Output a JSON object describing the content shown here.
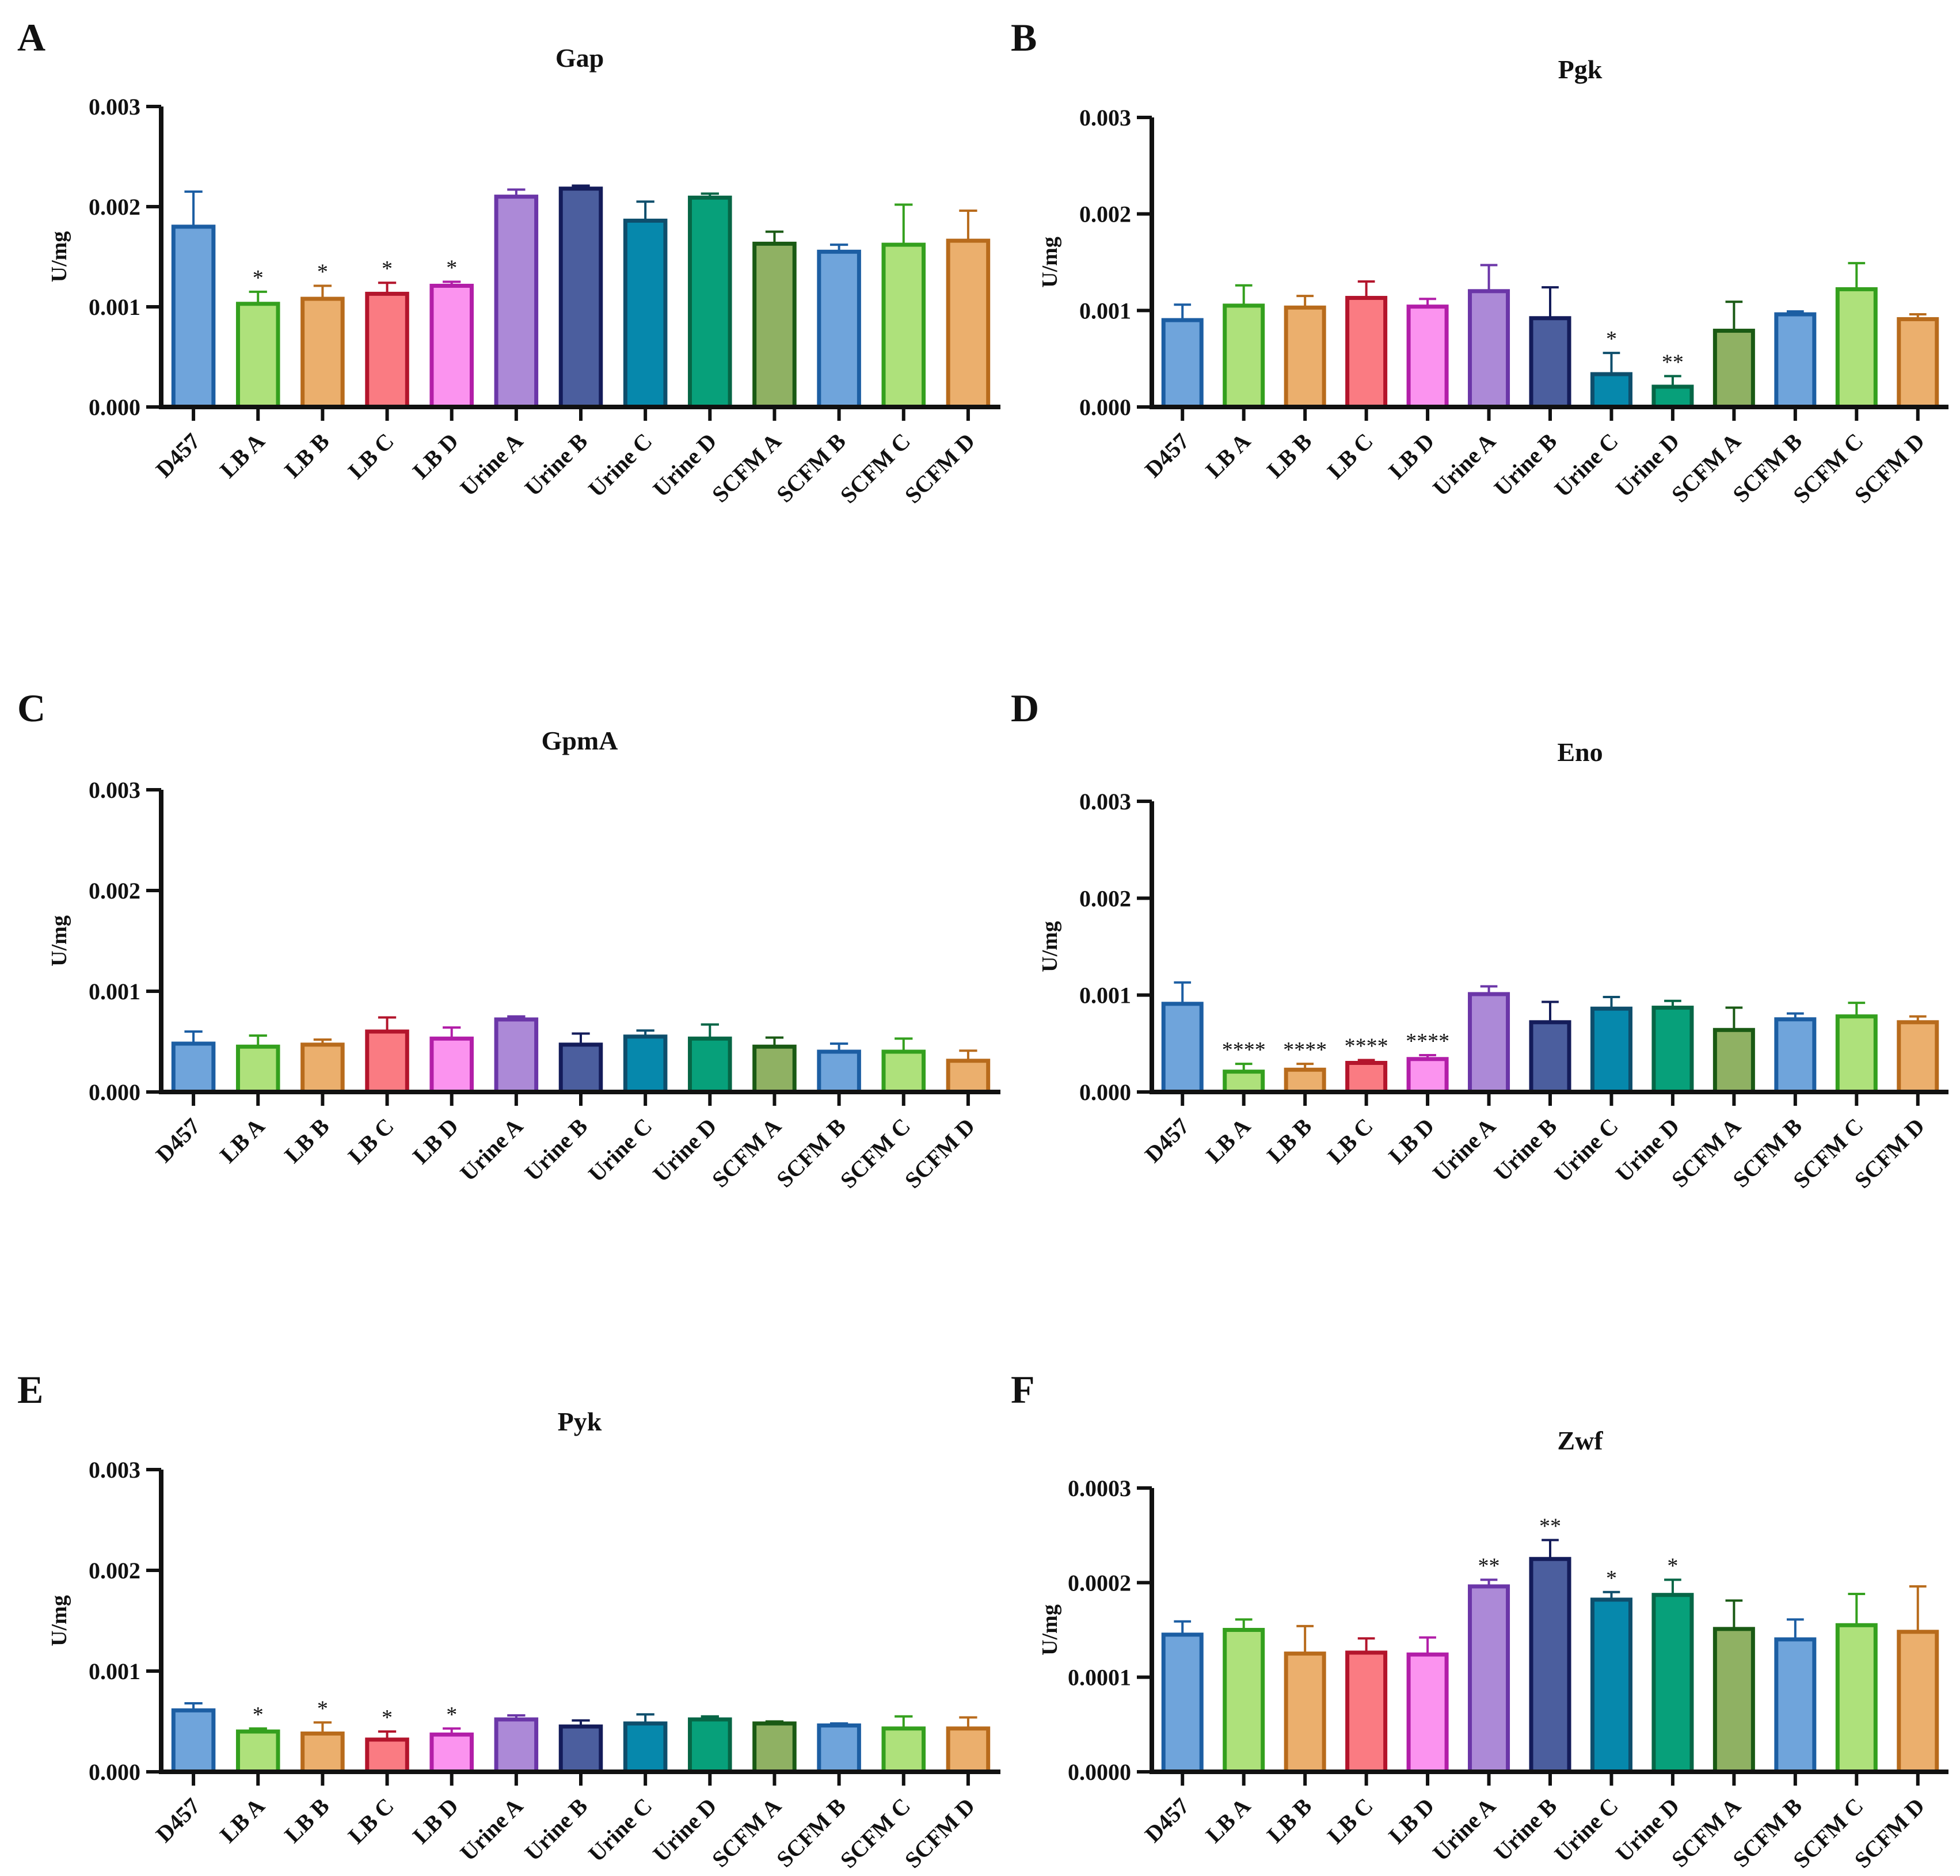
{
  "figure": {
    "categories": [
      "D457",
      "LB A",
      "LB B",
      "LB C",
      "LB D",
      "Urine A",
      "Urine B",
      "Urine C",
      "Urine D",
      "SCFM A",
      "SCFM B",
      "SCFM C",
      "SCFM D"
    ],
    "bar_fills": [
      "#6fa4db",
      "#aee17b",
      "#ebaf6d",
      "#fa7b82",
      "#fb93ef",
      "#ac89d7",
      "#4b5e9e",
      "#0688ac",
      "#07a07a",
      "#8fb163",
      "#6fa4db",
      "#aee17b",
      "#ebaf6d"
    ],
    "bar_outlines": [
      "#1c5ea3",
      "#34a01e",
      "#b86b1c",
      "#b3152c",
      "#b21ea8",
      "#6b36a8",
      "#141c5a",
      "#0e4e6c",
      "#066646",
      "#1a5a14",
      "#1c5ea3",
      "#34a01e",
      "#b86b1c"
    ]
  },
  "chart_data": [
    {
      "panel": "A",
      "type": "bar",
      "title": "Gap",
      "ylabel": "U/mg",
      "xlabel": "",
      "ylim": [
        0,
        0.003
      ],
      "yticks": [
        "0.000",
        "0.001",
        "0.002",
        "0.003"
      ],
      "values": [
        0.0018,
        0.00103,
        0.00108,
        0.00113,
        0.00121,
        0.0021,
        0.00218,
        0.00186,
        0.00209,
        0.00163,
        0.00155,
        0.00162,
        0.00166
      ],
      "errors": [
        0.00035,
        0.00012,
        0.00013,
        0.00011,
        4e-05,
        7e-05,
        3e-05,
        0.00019,
        4e-05,
        0.00012,
        7e-05,
        0.0004,
        0.0003
      ],
      "annotations": [
        "",
        "*",
        "*",
        "*",
        "*",
        "",
        "",
        "",
        "",
        "",
        "",
        "",
        ""
      ]
    },
    {
      "panel": "B",
      "type": "bar",
      "title": "Pgk",
      "ylabel": "U/mg",
      "xlabel": "",
      "ylim": [
        0,
        0.003
      ],
      "yticks": [
        "0.000",
        "0.001",
        "0.002",
        "0.003"
      ],
      "values": [
        0.0009,
        0.00105,
        0.00103,
        0.00113,
        0.00104,
        0.0012,
        0.00092,
        0.00034,
        0.00021,
        0.00079,
        0.00096,
        0.00122,
        0.00091
      ],
      "errors": [
        0.00016,
        0.00021,
        0.00012,
        0.00017,
        8e-05,
        0.00027,
        0.00032,
        0.00022,
        0.00011,
        0.0003,
        3e-05,
        0.00027,
        5e-05
      ],
      "annotations": [
        "",
        "",
        "",
        "",
        "",
        "",
        "",
        "*",
        "**",
        "",
        "",
        "",
        ""
      ]
    },
    {
      "panel": "C",
      "type": "bar",
      "title": "GpmA",
      "ylabel": "U/mg",
      "xlabel": "",
      "ylim": [
        0,
        0.003
      ],
      "yticks": [
        "0.000",
        "0.001",
        "0.002",
        "0.003"
      ],
      "values": [
        0.00048,
        0.00045,
        0.00047,
        0.0006,
        0.00053,
        0.00072,
        0.00047,
        0.00055,
        0.00053,
        0.00045,
        0.0004,
        0.0004,
        0.00031
      ],
      "errors": [
        0.00012,
        0.00011,
        5e-05,
        0.00014,
        0.00011,
        3e-05,
        0.00011,
        6e-05,
        0.00014,
        9e-05,
        8e-05,
        0.00013,
        0.0001
      ],
      "annotations": [
        "",
        "",
        "",
        "",
        "",
        "",
        "",
        "",
        "",
        "",
        "",
        "",
        ""
      ]
    },
    {
      "panel": "D",
      "type": "bar",
      "title": "Eno",
      "ylabel": "U/mg",
      "xlabel": "",
      "ylim": [
        0,
        0.003
      ],
      "yticks": [
        "0.000",
        "0.001",
        "0.002",
        "0.003"
      ],
      "values": [
        0.00091,
        0.00021,
        0.00023,
        0.0003,
        0.00034,
        0.00101,
        0.00072,
        0.00086,
        0.00087,
        0.00064,
        0.00075,
        0.00078,
        0.00072
      ],
      "errors": [
        0.00022,
        8e-05,
        6e-05,
        3e-05,
        4e-05,
        8e-05,
        0.00021,
        0.00012,
        7e-05,
        0.00023,
        6e-05,
        0.00014,
        6e-05
      ],
      "annotations": [
        "",
        "****",
        "****",
        "****",
        "****",
        "",
        "",
        "",
        "",
        "",
        "",
        "",
        ""
      ]
    },
    {
      "panel": "E",
      "type": "bar",
      "title": "Pyk",
      "ylabel": "U/mg",
      "xlabel": "",
      "ylim": [
        0,
        0.003
      ],
      "yticks": [
        "0.000",
        "0.001",
        "0.002",
        "0.003"
      ],
      "values": [
        0.00061,
        0.0004,
        0.00038,
        0.00032,
        0.00037,
        0.00052,
        0.00045,
        0.00048,
        0.00052,
        0.00048,
        0.00046,
        0.00043,
        0.00043
      ],
      "errors": [
        7e-05,
        3e-05,
        0.00011,
        8e-05,
        6e-05,
        4e-05,
        6e-05,
        9e-05,
        3e-05,
        2e-05,
        2e-05,
        0.00012,
        0.00011
      ],
      "annotations": [
        "",
        "*",
        "*",
        "*",
        "*",
        "",
        "",
        "",
        "",
        "",
        "",
        "",
        ""
      ]
    },
    {
      "panel": "F",
      "type": "bar",
      "title": "Zwf",
      "ylabel": "U/mg",
      "xlabel": "",
      "ylim": [
        0,
        0.0003
      ],
      "yticks": [
        "0.0000",
        "0.0001",
        "0.0002",
        "0.0003"
      ],
      "values": [
        0.000145,
        0.00015,
        0.000125,
        0.000126,
        0.000124,
        0.000196,
        0.000225,
        0.000182,
        0.000187,
        0.000151,
        0.00014,
        0.000155,
        0.000148
      ],
      "errors": [
        1.4e-05,
        1.1e-05,
        2.9e-05,
        1.5e-05,
        1.8e-05,
        7e-06,
        2e-05,
        8e-06,
        1.6e-05,
        3e-05,
        2.1e-05,
        3.3e-05,
        4.8e-05
      ],
      "annotations": [
        "",
        "",
        "",
        "",
        "",
        "**",
        "**",
        "*",
        "*",
        "",
        "",
        "",
        ""
      ]
    }
  ]
}
